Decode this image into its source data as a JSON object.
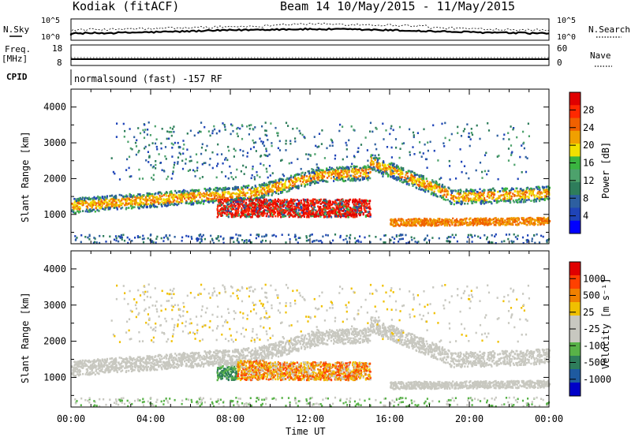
{
  "header": {
    "station": "Kodiak (fitACF)",
    "beam_info": "Beam 14  10/May/2015 - 11/May/2015"
  },
  "summary_panels": {
    "nsky_label": "N.Sky",
    "nsearch_label": "N.Search",
    "count_ticks": [
      "10^5",
      "10^0"
    ],
    "freq_label_top": "Freq.",
    "freq_label_unit": "[MHz]",
    "freq_ticks": [
      "18",
      "8"
    ],
    "nave_label": "Nave",
    "nave_ticks": [
      "60",
      "0"
    ],
    "cpid_label": "CPID",
    "cpid_text": "normalsound (fast) -157 RF"
  },
  "colors": {
    "power_scale": [
      "#0000ff",
      "#1f44b8",
      "#2d5fa0",
      "#2e7d5b",
      "#4da26c",
      "#3ab440",
      "#f0e000",
      "#f0a000",
      "#f06000",
      "#ff2800",
      "#e00000"
    ],
    "velocity_scale": [
      "#0000c8",
      "#1e5aa0",
      "#2e7d5b",
      "#58b248",
      "#c8c8c0",
      "#c8c8c0",
      "#f0c000",
      "#f08000",
      "#ff4000",
      "#e00000"
    ]
  },
  "chart_data": [
    {
      "type": "heatmap",
      "title": "Beam 14  10/May/2015 - 11/May/2015",
      "xlabel": "",
      "ylabel": "Slant Range [km]",
      "xlim": [
        "00:00",
        "24:00"
      ],
      "ylim": [
        180,
        4500
      ],
      "x_ticks": [
        "00:00",
        "04:00",
        "08:00",
        "12:00",
        "16:00",
        "20:00",
        "00:00"
      ],
      "y_ticks": [
        1000,
        2000,
        3000,
        4000
      ],
      "colorbar": {
        "label": "Power [dB]",
        "range": [
          0,
          32
        ],
        "ticks": [
          4,
          8,
          12,
          16,
          20,
          24,
          28
        ]
      },
      "grid": false
    },
    {
      "type": "heatmap",
      "title": "",
      "xlabel": "Time UT",
      "ylabel": "Slant Range [km]",
      "xlim": [
        "00:00",
        "24:00"
      ],
      "ylim": [
        180,
        4500
      ],
      "x_ticks": [
        "00:00",
        "04:00",
        "08:00",
        "12:00",
        "16:00",
        "20:00",
        "00:00"
      ],
      "y_ticks": [
        1000,
        2000,
        3000,
        4000
      ],
      "colorbar": {
        "label": "Velocity [m s⁻¹]",
        "range": [
          -1500,
          1500
        ],
        "ticks": [
          1000,
          500,
          25,
          -25,
          -100,
          -500,
          -1000
        ]
      },
      "grid": false
    }
  ]
}
